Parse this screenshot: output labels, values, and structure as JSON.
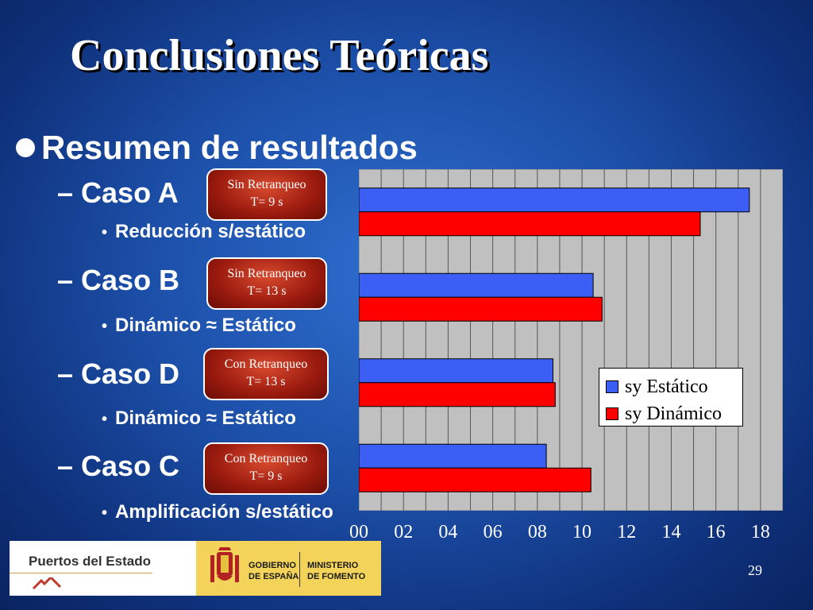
{
  "slide": {
    "title": "Conclusiones Teóricas",
    "bullet": "Resumen de resultados",
    "cases": [
      {
        "label": "– Caso A",
        "note": "Reducción s/estático",
        "badge_line1": "Sin Retranqueo",
        "badge_line2": "T= 9 s"
      },
      {
        "label": "– Caso B",
        "note": "Dinámico ≈ Estático",
        "badge_line1": "Sin Retranqueo",
        "badge_line2": "T= 13 s"
      },
      {
        "label": "– Caso D",
        "note": "Dinámico ≈ Estático",
        "badge_line1": "Con Retranqueo",
        "badge_line2": "T= 13 s"
      },
      {
        "label": "– Caso C",
        "note": "Amplificación s/estático",
        "badge_line1": "Con Retranqueo",
        "badge_line2": "T= 9 s"
      }
    ],
    "page_number": "29"
  },
  "footer": {
    "left_text": "Puertos del Estado",
    "gobierno": [
      "GOBIERNO",
      "DE ESPAÑA"
    ],
    "ministerio": [
      "MINISTERIO",
      "DE FOMENTO"
    ]
  },
  "colors": {
    "estatico": "#3b5ff5",
    "dinamico": "#ff0000",
    "plot_bg": "#c0c0c0",
    "badge": "#9a1a0e"
  },
  "chart_data": {
    "type": "bar",
    "orientation": "horizontal",
    "categories": [
      "Caso A",
      "Caso B",
      "Caso D",
      "Caso C"
    ],
    "series": [
      {
        "name": "sy Estático",
        "values": [
          17.5,
          10.5,
          8.7,
          8.4
        ]
      },
      {
        "name": "sy Dinámico",
        "values": [
          15.3,
          10.9,
          8.8,
          10.4
        ]
      }
    ],
    "xlim": [
      0,
      19
    ],
    "xticks": [
      0,
      2,
      4,
      6,
      8,
      10,
      12,
      14,
      16,
      18
    ],
    "xtick_labels": [
      "00",
      "02",
      "04",
      "06",
      "08",
      "10",
      "12",
      "14",
      "16",
      "18"
    ],
    "grid": "vertical",
    "legend": "bottom-right"
  }
}
